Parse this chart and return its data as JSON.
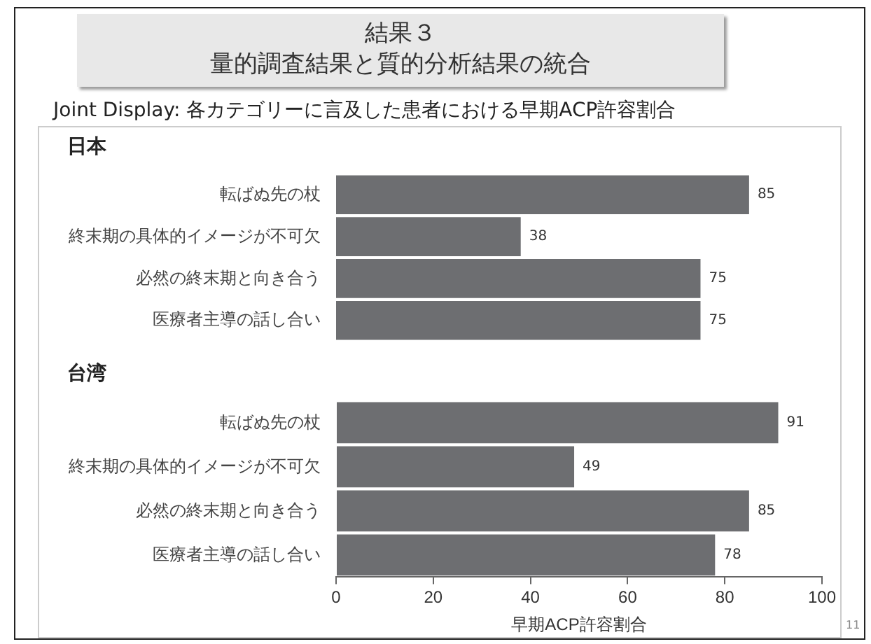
{
  "chart_data": [
    {
      "type": "other",
      "title": "結果３",
      "subtitle": "量的調査結果と質的分析結果の統合",
      "annotations": [
        "Joint Display: 各カテゴリーに言及した患者における早期ACP許容割合",
        "11"
      ]
    },
    {
      "type": "bar",
      "orientation": "horizontal",
      "title": "日本",
      "categories": [
        "転ばぬ先の杖",
        "終末期の具体的イメージが不可欠",
        "必然の終末期と向き合う",
        "医療者主導の話し合い"
      ],
      "values": [
        85,
        38,
        75,
        75
      ],
      "color": "#6d6e71",
      "xlim": [
        0,
        100
      ],
      "xticks": [
        0,
        20,
        40,
        60,
        80,
        100
      ],
      "tick_labels": "y",
      "grid": false,
      "legend": false,
      "data_labels": true
    },
    {
      "type": "bar",
      "orientation": "horizontal",
      "title": "台湾",
      "categories": [
        "転ばぬ先の杖",
        "終末期の具体的イメージが不可欠",
        "必然の終末期と向き合う",
        "医療者主導の話し合い"
      ],
      "values": [
        91,
        49,
        85,
        78
      ],
      "color": "#6d6e71",
      "xlim": [
        0,
        100
      ],
      "xticks": [
        0,
        20,
        40,
        60,
        80,
        100
      ],
      "xlabel": "早期ACP許容割合",
      "grid": false,
      "legend": false,
      "data_labels": true
    }
  ]
}
